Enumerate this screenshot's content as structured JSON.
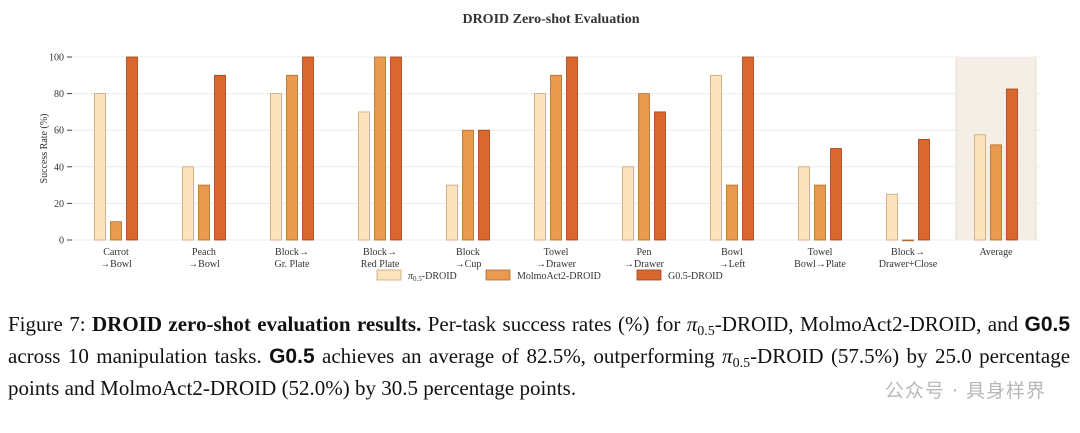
{
  "chart_data": {
    "type": "bar",
    "title": "DROID Zero-shot Evaluation",
    "ylabel": "Success Rate (%)",
    "xlabel": "",
    "ylim": [
      0,
      100
    ],
    "yticks": [
      0,
      20,
      40,
      60,
      80,
      100
    ],
    "grid": "horizontal",
    "legend_position": "bottom",
    "categories": [
      [
        "Carrot",
        "→Bowl"
      ],
      [
        "Peach",
        "→Bowl"
      ],
      [
        "Block→",
        "Gr. Plate"
      ],
      [
        "Block→",
        "Red Plate"
      ],
      [
        "Block",
        "→Cup"
      ],
      [
        "Towel",
        "→Drawer"
      ],
      [
        "Pen",
        "→Drawer"
      ],
      [
        "Bowl",
        "→Left"
      ],
      [
        "Towel",
        "Bowl→Plate"
      ],
      [
        "Block→",
        "Drawer+Close"
      ],
      [
        "Average"
      ]
    ],
    "highlight_category": "Average",
    "series": [
      {
        "name": "π0.5-DROID",
        "legend_base": "π",
        "legend_sub": "0.5",
        "legend_rest": "-DROID",
        "color": "#fbe3bd",
        "edge": "#c9a473",
        "values": [
          80,
          40,
          80,
          70,
          30,
          80,
          40,
          90,
          40,
          25,
          57.5
        ]
      },
      {
        "name": "MolmoAct2-DROID",
        "color": "#e99a4e",
        "edge": "#b56a26",
        "values": [
          10,
          30,
          90,
          100,
          60,
          90,
          80,
          30,
          30,
          0,
          52.0
        ]
      },
      {
        "name": "G0.5-DROID",
        "color": "#d9672e",
        "edge": "#9f431a",
        "values": [
          100,
          90,
          100,
          100,
          60,
          100,
          70,
          100,
          50,
          55,
          82.5
        ]
      }
    ]
  },
  "caption": {
    "figure_label": "Figure 7:",
    "bold_title": "DROID zero-shot evaluation results.",
    "p1": "Per-task success rates (%) for",
    "pi": "π",
    "pi_sub": "0.5",
    "p2": "-DROID, MolmoAct2-DROID, and",
    "g05": "G0.5",
    "p3": "across 10 manipulation tasks.",
    "p4": "achieves an average of 82.5%, outperforming",
    "p5": "-DROID (57.5%) by 25.0 percentage points and MolmoAct2-DROID (52.0%) by 30.5 percentage points."
  },
  "watermark": "公众号 · 具身样界"
}
